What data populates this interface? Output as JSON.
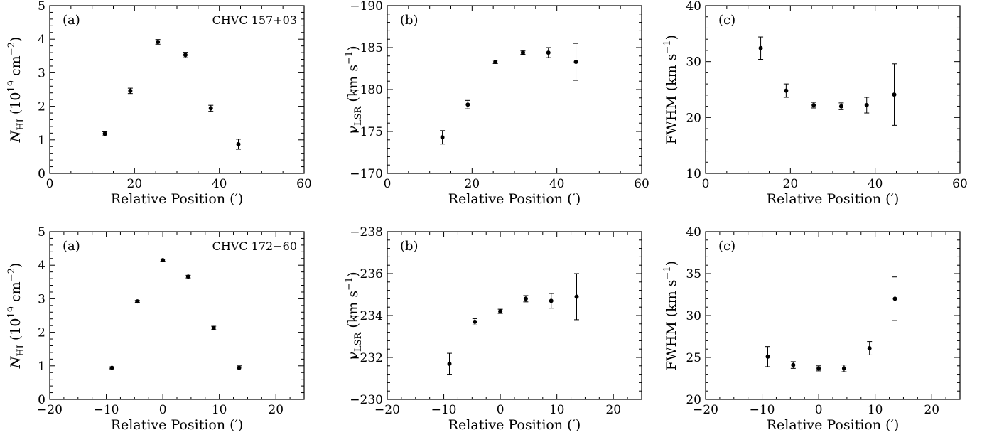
{
  "chart_data": [
    {
      "type": "scatter",
      "panel": "(a)",
      "annotation": "CHVC 157+03",
      "xlabel": "Relative Position (′)",
      "ylabel": {
        "base": "N",
        "sub": "HI",
        "unit_prefix": " (10",
        "sup": "19",
        "unit_mid": " cm",
        "unit_sup": "−2",
        "unit_suffix": ")"
      },
      "xlim": [
        0,
        60
      ],
      "ylim": [
        0,
        5
      ],
      "xticks": [
        0,
        20,
        40,
        60
      ],
      "yticks": [
        0,
        1,
        2,
        3,
        4,
        5
      ],
      "x": [
        13,
        19,
        25.5,
        32,
        38,
        44.5
      ],
      "y": [
        1.18,
        2.46,
        3.92,
        3.53,
        1.94,
        0.87
      ],
      "err": [
        0.06,
        0.08,
        0.07,
        0.08,
        0.09,
        0.15
      ]
    },
    {
      "type": "scatter",
      "panel": "(b)",
      "annotation": "",
      "xlabel": "Relative Position (′)",
      "ylabel": {
        "base": "v",
        "sub": "LSR",
        "unit_prefix": " (km s",
        "sup": "−1",
        "unit_suffix": ")"
      },
      "xlim": [
        0,
        60
      ],
      "ylim": [
        -170,
        -190
      ],
      "inverted": true,
      "xticks": [
        0,
        20,
        40,
        60
      ],
      "yticks": [
        -170,
        -175,
        -180,
        -185,
        -190
      ],
      "x": [
        13,
        19,
        25.5,
        32,
        38,
        44.5
      ],
      "y": [
        -174.3,
        -178.2,
        -183.3,
        -184.4,
        -184.4,
        -183.3
      ],
      "err": [
        0.8,
        0.5,
        0.2,
        0.2,
        0.6,
        2.2
      ]
    },
    {
      "type": "scatter",
      "panel": "(c)",
      "annotation": "",
      "xlabel": "Relative Position (′)",
      "ylabel": {
        "base": "FWHM (km s",
        "sup": "−1",
        "unit_suffix": ")"
      },
      "xlim": [
        0,
        60
      ],
      "ylim": [
        10,
        40
      ],
      "xticks": [
        0,
        20,
        40,
        60
      ],
      "yticks": [
        10,
        20,
        30,
        40
      ],
      "x": [
        13,
        19,
        25.5,
        32,
        38,
        44.5
      ],
      "y": [
        32.4,
        24.8,
        22.2,
        22.0,
        22.2,
        24.1
      ],
      "err": [
        2.0,
        1.2,
        0.5,
        0.6,
        1.4,
        5.5
      ]
    },
    {
      "type": "scatter",
      "panel": "(a)",
      "annotation": "CHVC 172−60",
      "xlabel": "Relative Position (′)",
      "ylabel": {
        "base": "N",
        "sub": "HI",
        "unit_prefix": " (10",
        "sup": "19",
        "unit_mid": " cm",
        "unit_sup": "−2",
        "unit_suffix": ")"
      },
      "xlim": [
        -20,
        25
      ],
      "ylim": [
        0,
        5
      ],
      "xticks": [
        -20,
        -10,
        0,
        10,
        20
      ],
      "yticks": [
        0,
        1,
        2,
        3,
        4,
        5
      ],
      "x": [
        -9,
        -4.5,
        0,
        4.5,
        9,
        13.5
      ],
      "y": [
        0.94,
        2.92,
        4.15,
        3.66,
        2.13,
        0.94
      ],
      "err": [
        0.03,
        0.03,
        0.03,
        0.04,
        0.05,
        0.06
      ]
    },
    {
      "type": "scatter",
      "panel": "(b)",
      "annotation": "",
      "xlabel": "Relative Position (′)",
      "ylabel": {
        "base": "v",
        "sub": "LSR",
        "unit_prefix": " (km s",
        "sup": "−1",
        "unit_suffix": ")"
      },
      "xlim": [
        -20,
        25
      ],
      "ylim": [
        -230,
        -238
      ],
      "inverted": true,
      "xticks": [
        -20,
        -10,
        0,
        10,
        20
      ],
      "yticks": [
        -230,
        -232,
        -234,
        -236,
        -238
      ],
      "x": [
        -9,
        -4.5,
        0,
        4.5,
        9,
        13.5
      ],
      "y": [
        -231.7,
        -233.7,
        -234.2,
        -234.8,
        -234.7,
        -234.9
      ],
      "err": [
        0.5,
        0.15,
        0.1,
        0.15,
        0.35,
        1.1
      ]
    },
    {
      "type": "scatter",
      "panel": "(c)",
      "annotation": "",
      "xlabel": "Relative Position (′)",
      "ylabel": {
        "base": "FWHM (km s",
        "sup": "−1",
        "unit_suffix": ")"
      },
      "xlim": [
        -20,
        25
      ],
      "ylim": [
        20,
        40
      ],
      "xticks": [
        -20,
        -10,
        0,
        10,
        20
      ],
      "yticks": [
        20,
        25,
        30,
        35,
        40
      ],
      "x": [
        -9,
        -4.5,
        0,
        4.5,
        9,
        13.5
      ],
      "y": [
        25.1,
        24.1,
        23.7,
        23.7,
        26.1,
        32.0
      ],
      "err": [
        1.2,
        0.4,
        0.3,
        0.4,
        0.8,
        2.6
      ]
    }
  ]
}
